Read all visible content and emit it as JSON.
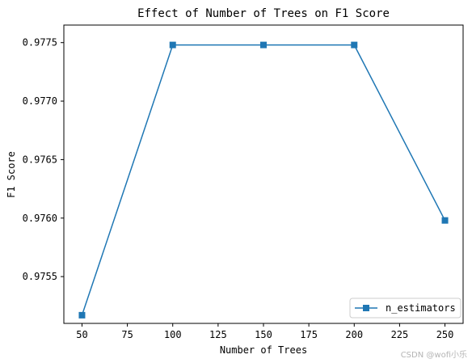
{
  "chart_data": {
    "type": "line",
    "title": "Effect of Number of Trees on F1 Score",
    "xlabel": "Number of Trees",
    "ylabel": "F1 Score",
    "x": [
      50,
      100,
      150,
      200,
      250
    ],
    "series": [
      {
        "name": "n_estimators",
        "values": [
          0.97517,
          0.97748,
          0.97748,
          0.97748,
          0.97598
        ],
        "color": "#1f77b4",
        "marker": "square"
      }
    ],
    "xlim": [
      40,
      260
    ],
    "ylim": [
      0.9751,
      0.97765
    ],
    "xticks": [
      50,
      75,
      100,
      125,
      150,
      175,
      200,
      225,
      250
    ],
    "xtick_labels": [
      "50",
      "75",
      "100",
      "125",
      "150",
      "175",
      "200",
      "225",
      "250"
    ],
    "yticks": [
      0.9755,
      0.976,
      0.9765,
      0.977,
      0.9775
    ],
    "ytick_labels": [
      "0.9755",
      "0.9760",
      "0.9765",
      "0.9770",
      "0.9775"
    ],
    "grid": false,
    "legend_position": "lower-right"
  },
  "watermark": "CSDN @wofi小乐"
}
